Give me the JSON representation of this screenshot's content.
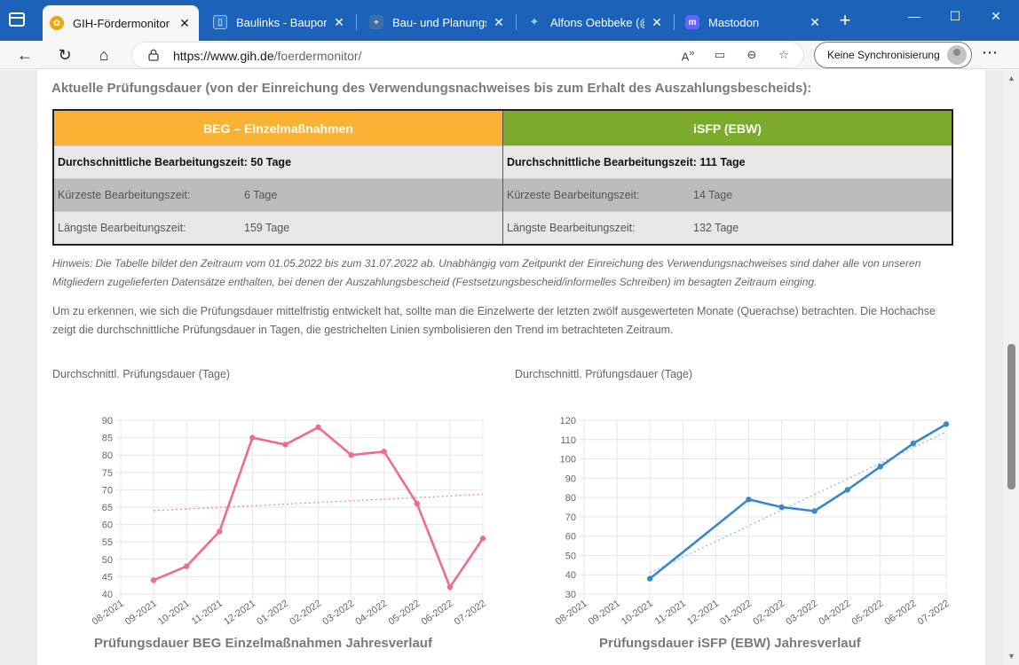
{
  "tabs": [
    {
      "label": "GIH-Fördermonitor ·",
      "color": "#f0a500",
      "icon": "gih-favicon"
    },
    {
      "label": "Baulinks - Bauportal",
      "color": "#2c74c9",
      "icon": "baulinks-favicon"
    },
    {
      "label": "Bau- und Planungsp",
      "color": "#3d6ea8",
      "icon": "map-pin-favicon"
    },
    {
      "label": "Alfons Oebbeke (@c",
      "color": "#1d9bf0",
      "icon": "twitter-favicon"
    },
    {
      "label": "Mastodon",
      "color": "#6364ff",
      "icon": "mastodon-favicon"
    }
  ],
  "address": {
    "host": "https://www.gih.de",
    "path": "/foerdermonitor/"
  },
  "sync_label": "Keine Synchronisierung",
  "heading": "Aktuelle Prüfungsdauer (von der Einreichung des Verwendungsnachweises bis zum Erhalt des Auszahlungsbescheids):",
  "table": {
    "left": {
      "header": "BEG – Einzelmaßnahmen",
      "header_color": "#f9b233",
      "avg": "Durchschnittliche Bearbeitungszeit: 50 Tage",
      "min_label": "Kürzeste Bearbeitungszeit:",
      "min_value": "6 Tage",
      "max_label": "Längste Bearbeitungszeit:",
      "max_value": "159 Tage"
    },
    "right": {
      "header": "iSFP (EBW)",
      "header_color": "#7aab2a",
      "avg": "Durchschnittliche Bearbeitungszeit: 111 Tage",
      "min_label": "Kürzeste Bearbeitungszeit:",
      "min_value": "14 Tage",
      "max_label": "Längste Bearbeitungszeit:",
      "max_value": "132 Tage"
    }
  },
  "note": "Hinweis: Die Tabelle bildet den Zeitraum vom 01.05.2022 bis zum 31.07.2022 ab. Unabhängig vom Zeitpunkt der Einreichung des Verwendungsnachweises sind daher alle von unseren Mitgliedern zugelieferten Datensätze enthalten, bei denen der Auszahlungsbescheid (Festsetzungsbescheid/informelles Schreiben) im besagten Zeitraum einging.",
  "paragraph": "Um zu erkennen, wie sich die Prüfungsdauer mittelfristig entwickelt hat, sollte man die Einzelwerte der letzten zwölf ausgewerteten Monate (Querachse) betrachten. Die Hochachse zeigt die durchschnittliche Prüfungsdauer in Tagen, die gestrichelten Linien symbolisieren den Trend im betrachteten Zeitraum.",
  "chart_data": [
    {
      "type": "line",
      "title": "Prüfungsdauer BEG Einzelmaßnahmen Jahresverlauf",
      "ylabel": "Durchschnittl. Prüfungsdauer (Tage)",
      "xlabel": "",
      "categories": [
        "08-2021",
        "09-2021",
        "10-2021",
        "11-2021",
        "12-2021",
        "01-2022",
        "02-2022",
        "03-2022",
        "04-2022",
        "05-2022",
        "06-2022",
        "07-2022"
      ],
      "series": [
        {
          "values": [
            null,
            44,
            48,
            58,
            85,
            83,
            88,
            80,
            81,
            66,
            42,
            56
          ],
          "color": "#f06b8c"
        }
      ],
      "trend": {
        "start": 64,
        "end": 68.7,
        "color": "#f06b8c",
        "style": "dotted"
      },
      "ylim": [
        40,
        90
      ],
      "yticks": [
        40,
        45,
        50,
        55,
        60,
        65,
        70,
        75,
        80,
        85,
        90
      ],
      "grid": true
    },
    {
      "type": "line",
      "title": "Prüfungsdauer iSFP (EBW) Jahresverlauf",
      "ylabel": "Durchschnittl. Prüfungsdauer (Tage)",
      "xlabel": "",
      "categories": [
        "08-2021",
        "09-2021",
        "10-2021",
        "11-2021",
        "12-2021",
        "01-2022",
        "02-2022",
        "03-2022",
        "04-2022",
        "05-2022",
        "06-2022",
        "07-2022"
      ],
      "series": [
        {
          "values": [
            null,
            null,
            38,
            null,
            null,
            79,
            75,
            73,
            84,
            96,
            108,
            118
          ],
          "color": "#3a87cc"
        }
      ],
      "trend": {
        "start": 41,
        "end": 114,
        "from_index": 2,
        "color": "#6aaee6",
        "style": "dotted"
      },
      "ylim": [
        30,
        120
      ],
      "yticks": [
        30,
        40,
        50,
        60,
        70,
        80,
        90,
        100,
        110,
        120
      ],
      "grid": true
    }
  ]
}
